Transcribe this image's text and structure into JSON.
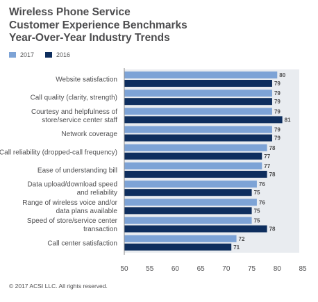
{
  "title_lines": [
    "Wireless Phone Service",
    "Customer Experience Benchmarks",
    "Year-Over-Year Industry Trends"
  ],
  "colors": {
    "series_2017": "#7da3d6",
    "series_2016": "#0e2e5e",
    "band": "#e9ecf0",
    "text": "#4d4d4f"
  },
  "footer": "© 2017 ACSI LLC. All rights reserved.",
  "chart_data": {
    "type": "bar",
    "orientation": "horizontal",
    "categories": [
      [
        "Website satisfaction"
      ],
      [
        "Call quality (clarity, strength)"
      ],
      [
        "Courtesy and helpfulness of",
        "store/service center staff"
      ],
      [
        "Network coverage"
      ],
      [
        "Call reliability (dropped-call frequency)"
      ],
      [
        "Ease of understanding bill"
      ],
      [
        "Data upload/download speed",
        "and reliability"
      ],
      [
        "Range of wireless voice and/or",
        "data plans available"
      ],
      [
        "Speed of store/service center",
        "transaction"
      ],
      [
        "Call center satisfaction"
      ]
    ],
    "series": [
      {
        "name": "2017",
        "color": "#7da3d6",
        "values": [
          80,
          79,
          79,
          79,
          78,
          77,
          76,
          76,
          75,
          72
        ]
      },
      {
        "name": "2016",
        "color": "#0e2e5e",
        "values": [
          79,
          79,
          81,
          79,
          77,
          78,
          75,
          75,
          78,
          71
        ]
      }
    ],
    "xlim": [
      50,
      85
    ],
    "xticks": [
      50,
      55,
      60,
      65,
      70,
      75,
      80,
      85
    ],
    "xlabel": "",
    "ylabel": "",
    "legend": "top-left",
    "grid": false
  }
}
